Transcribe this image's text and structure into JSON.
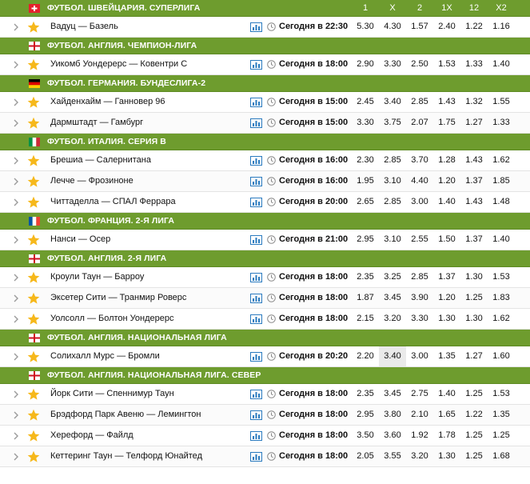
{
  "columns": [
    "1",
    "X",
    "2",
    "1X",
    "12",
    "X2"
  ],
  "colors": {
    "league_bar": "#6e9c2e",
    "star": "#f6b81b",
    "icon": "#2b7bbf"
  },
  "leagues": [
    {
      "name": "ФУТБОЛ. ШВЕЙЦАРИЯ. СУПЕРЛИГА",
      "flag": "switzerland-flag",
      "show_header": true,
      "matches": [
        {
          "teams": "Вадуц — Базель",
          "time": "Сегодня в 22:30",
          "odds": [
            "5.30",
            "4.30",
            "1.57",
            "2.40",
            "1.22",
            "1.16"
          ]
        }
      ]
    },
    {
      "name": "ФУТБОЛ. АНГЛИЯ. ЧЕМПИОН-ЛИГА",
      "flag": "england-flag",
      "matches": [
        {
          "teams": "Уикомб Уондерерс — Ковентри С",
          "time": "Сегодня в 18:00",
          "odds": [
            "2.90",
            "3.30",
            "2.50",
            "1.53",
            "1.33",
            "1.40"
          ]
        }
      ]
    },
    {
      "name": "ФУТБОЛ. ГЕРМАНИЯ. БУНДЕСЛИГА-2",
      "flag": "germany-flag",
      "matches": [
        {
          "teams": "Хайденхайм — Ганновер 96",
          "time": "Сегодня в 15:00",
          "odds": [
            "2.45",
            "3.40",
            "2.85",
            "1.43",
            "1.32",
            "1.55"
          ]
        },
        {
          "teams": "Дармштадт — Гамбург",
          "time": "Сегодня в 15:00",
          "odds": [
            "3.30",
            "3.75",
            "2.07",
            "1.75",
            "1.27",
            "1.33"
          ]
        }
      ]
    },
    {
      "name": "ФУТБОЛ. ИТАЛИЯ. СЕРИЯ В",
      "flag": "italy-flag",
      "matches": [
        {
          "teams": "Брешиа — Салернитана",
          "time": "Сегодня в 16:00",
          "odds": [
            "2.30",
            "2.85",
            "3.70",
            "1.28",
            "1.43",
            "1.62"
          ]
        },
        {
          "teams": "Лечче — Фрозиноне",
          "time": "Сегодня в 16:00",
          "odds": [
            "1.95",
            "3.10",
            "4.40",
            "1.20",
            "1.37",
            "1.85"
          ]
        },
        {
          "teams": "Читтаделла — СПАЛ Феррара",
          "time": "Сегодня в 20:00",
          "odds": [
            "2.65",
            "2.85",
            "3.00",
            "1.40",
            "1.43",
            "1.48"
          ]
        }
      ]
    },
    {
      "name": "ФУТБОЛ. ФРАНЦИЯ. 2-Я ЛИГА",
      "flag": "france-flag",
      "matches": [
        {
          "teams": "Нанси — Осер",
          "time": "Сегодня в 21:00",
          "odds": [
            "2.95",
            "3.10",
            "2.55",
            "1.50",
            "1.37",
            "1.40"
          ]
        }
      ]
    },
    {
      "name": "ФУТБОЛ. АНГЛИЯ. 2-Я ЛИГА",
      "flag": "england-flag",
      "matches": [
        {
          "teams": "Кроули Таун — Барроу",
          "time": "Сегодня в 18:00",
          "odds": [
            "2.35",
            "3.25",
            "2.85",
            "1.37",
            "1.30",
            "1.53"
          ]
        },
        {
          "teams": "Эксетер Сити — Транмир Роверс",
          "time": "Сегодня в 18:00",
          "odds": [
            "1.87",
            "3.45",
            "3.90",
            "1.20",
            "1.25",
            "1.83"
          ]
        },
        {
          "teams": "Уолсолл — Болтон Уондерерс",
          "time": "Сегодня в 18:00",
          "odds": [
            "2.15",
            "3.20",
            "3.30",
            "1.30",
            "1.30",
            "1.62"
          ]
        }
      ]
    },
    {
      "name": "ФУТБОЛ. АНГЛИЯ. НАЦИОНАЛЬНАЯ ЛИГА",
      "flag": "england-flag",
      "matches": [
        {
          "teams": "Солихалл Мурс — Бромли",
          "time": "Сегодня в 20:20",
          "odds": [
            "2.20",
            "3.40",
            "3.00",
            "1.35",
            "1.27",
            "1.60"
          ],
          "highlight": 1
        }
      ]
    },
    {
      "name": "ФУТБОЛ. АНГЛИЯ. НАЦИОНАЛЬНАЯ ЛИГА. СЕВЕР",
      "flag": "england-flag",
      "matches": [
        {
          "teams": "Йорк Сити — Спеннимур Таун",
          "time": "Сегодня в 18:00",
          "odds": [
            "2.35",
            "3.45",
            "2.75",
            "1.40",
            "1.25",
            "1.53"
          ]
        },
        {
          "teams": "Брэдфорд Парк Авеню — Лемингтон",
          "time": "Сегодня в 18:00",
          "odds": [
            "2.95",
            "3.80",
            "2.10",
            "1.65",
            "1.22",
            "1.35"
          ]
        },
        {
          "teams": "Херефорд — Файлд",
          "time": "Сегодня в 18:00",
          "odds": [
            "3.50",
            "3.60",
            "1.92",
            "1.78",
            "1.25",
            "1.25"
          ]
        },
        {
          "teams": "Кеттеринг Таун — Телфорд Юнайтед",
          "time": "Сегодня в 18:00",
          "odds": [
            "2.05",
            "3.55",
            "3.20",
            "1.30",
            "1.25",
            "1.68"
          ]
        }
      ]
    }
  ]
}
